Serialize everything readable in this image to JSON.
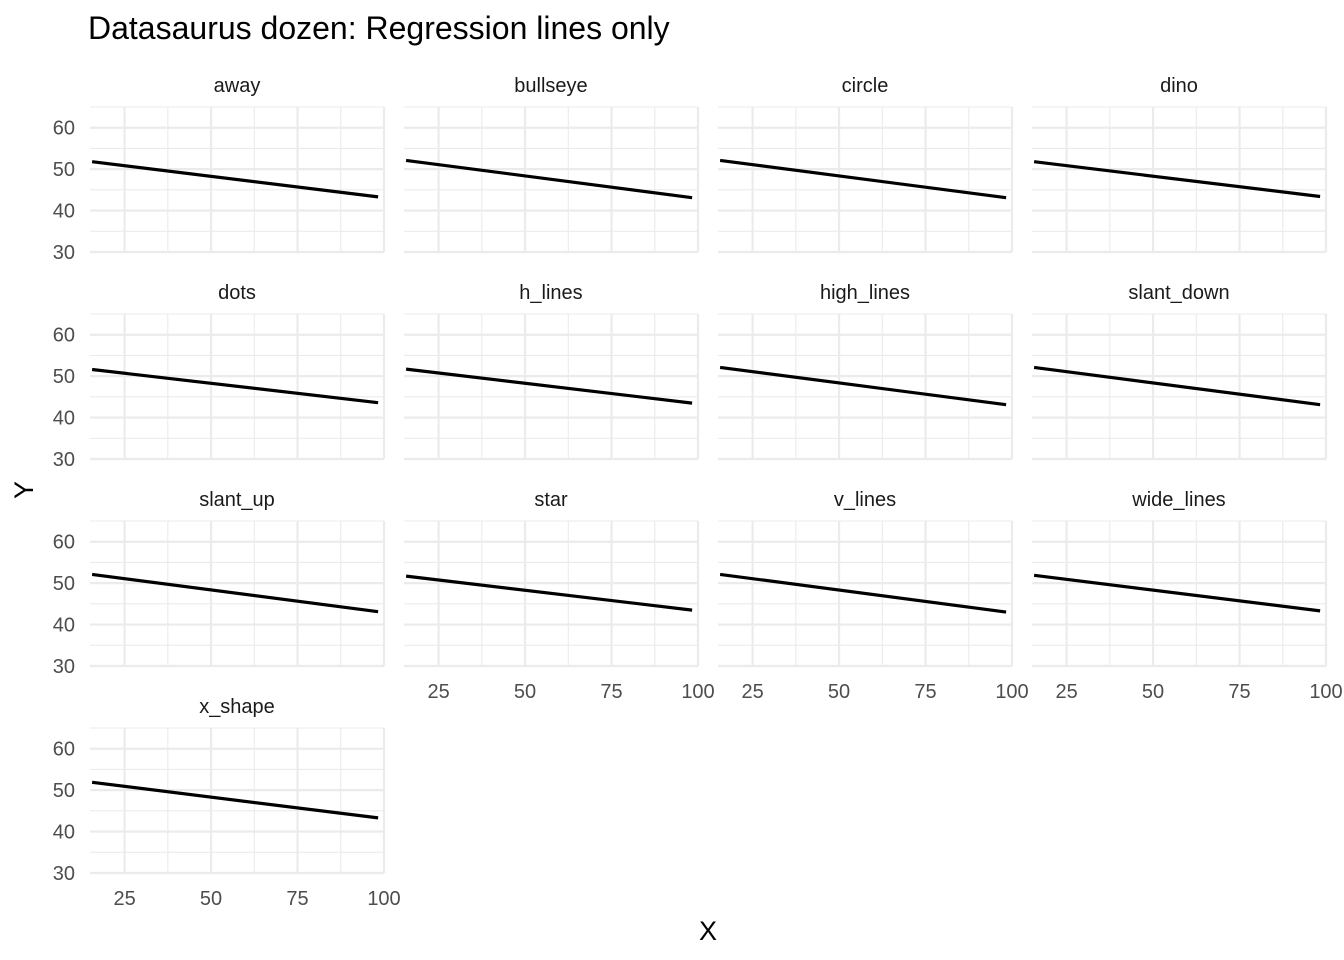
{
  "chart_data": {
    "type": "line",
    "title": "Datasaurus dozen: Regression lines only",
    "xlabel": "X",
    "ylabel": "Y",
    "xlim": [
      15,
      100
    ],
    "ylim": [
      30,
      65
    ],
    "x_ticks": [
      25,
      50,
      75,
      100
    ],
    "y_ticks": [
      30,
      40,
      50,
      60
    ],
    "grid": true,
    "legend": "none",
    "line_color": "#000000",
    "facets": [
      {
        "name": "away",
        "x": [
          15.6,
          98.3
        ],
        "y": [
          51.8,
          43.3
        ]
      },
      {
        "name": "bullseye",
        "x": [
          15.6,
          98.3
        ],
        "y": [
          52.1,
          43.1
        ]
      },
      {
        "name": "circle",
        "x": [
          15.6,
          98.3
        ],
        "y": [
          52.1,
          43.1
        ]
      },
      {
        "name": "dino",
        "x": [
          15.6,
          98.3
        ],
        "y": [
          51.8,
          43.4
        ]
      },
      {
        "name": "dots",
        "x": [
          15.6,
          98.3
        ],
        "y": [
          51.6,
          43.6
        ]
      },
      {
        "name": "h_lines",
        "x": [
          15.6,
          98.3
        ],
        "y": [
          51.7,
          43.5
        ]
      },
      {
        "name": "high_lines",
        "x": [
          15.6,
          98.3
        ],
        "y": [
          52.1,
          43.1
        ]
      },
      {
        "name": "slant_down",
        "x": [
          15.6,
          98.3
        ],
        "y": [
          52.1,
          43.1
        ]
      },
      {
        "name": "slant_up",
        "x": [
          15.6,
          98.3
        ],
        "y": [
          52.1,
          43.1
        ]
      },
      {
        "name": "star",
        "x": [
          15.6,
          98.3
        ],
        "y": [
          51.7,
          43.5
        ]
      },
      {
        "name": "v_lines",
        "x": [
          15.6,
          98.3
        ],
        "y": [
          52.1,
          43.0
        ]
      },
      {
        "name": "wide_lines",
        "x": [
          15.6,
          98.3
        ],
        "y": [
          51.9,
          43.3
        ]
      },
      {
        "name": "x_shape",
        "x": [
          15.6,
          98.3
        ],
        "y": [
          51.9,
          43.3
        ]
      }
    ]
  }
}
